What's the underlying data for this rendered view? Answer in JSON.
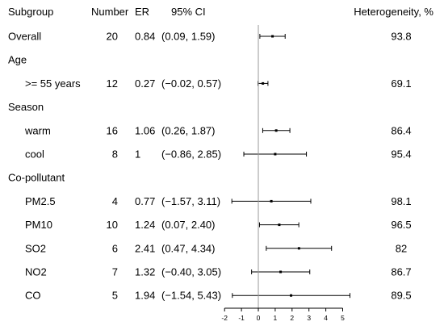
{
  "headers": {
    "subgroup": "Subgroup",
    "number": "Number",
    "er": "ER",
    "ci": "95% CI",
    "heterogeneity": "Heterogeneity, %"
  },
  "chart_data": {
    "type": "forest",
    "title": "",
    "xlabel": "",
    "ylabel": "",
    "reference_line": 0,
    "xlim": [
      -2,
      5.5
    ],
    "x_ticks": [
      -2,
      -1,
      0,
      1,
      2,
      3,
      4,
      5
    ],
    "x_tick_labels": [
      "-2",
      "-1",
      "0",
      "1",
      "2",
      "3",
      "4",
      "5"
    ],
    "rows": [
      {
        "kind": "row",
        "label": "Overall",
        "indent": false,
        "n": "20",
        "er_text": "0.84",
        "ci_text": "(0.09, 1.59)",
        "het_text": "93.8",
        "estimate": 0.84,
        "lower": 0.09,
        "upper": 1.59
      },
      {
        "kind": "header",
        "label": "Age"
      },
      {
        "kind": "row",
        "label": ">= 55 years",
        "indent": true,
        "n": "12",
        "er_text": "0.27",
        "ci_text": "(−0.02, 0.57)",
        "het_text": "69.1",
        "estimate": 0.27,
        "lower": -0.02,
        "upper": 0.57
      },
      {
        "kind": "header",
        "label": "Season"
      },
      {
        "kind": "row",
        "label": "warm",
        "indent": true,
        "n": "16",
        "er_text": "1.06",
        "ci_text": "(0.26, 1.87)",
        "het_text": "86.4",
        "estimate": 1.06,
        "lower": 0.26,
        "upper": 1.87
      },
      {
        "kind": "row",
        "label": "cool",
        "indent": true,
        "n": "8",
        "er_text": "1",
        "ci_text": "(−0.86, 2.85)",
        "het_text": "95.4",
        "estimate": 1.0,
        "lower": -0.86,
        "upper": 2.85
      },
      {
        "kind": "header",
        "label": "Co-pollutant"
      },
      {
        "kind": "row",
        "label": "PM2.5",
        "indent": true,
        "n": "4",
        "er_text": "0.77",
        "ci_text": "(−1.57, 3.11)",
        "het_text": "98.1",
        "estimate": 0.77,
        "lower": -1.57,
        "upper": 3.11
      },
      {
        "kind": "row",
        "label": "PM10",
        "indent": true,
        "n": "10",
        "er_text": "1.24",
        "ci_text": "(0.07, 2.40)",
        "het_text": "96.5",
        "estimate": 1.24,
        "lower": 0.07,
        "upper": 2.4
      },
      {
        "kind": "row",
        "label": "SO2",
        "indent": true,
        "n": "6",
        "er_text": "2.41",
        "ci_text": "(0.47, 4.34)",
        "het_text": "82",
        "estimate": 2.41,
        "lower": 0.47,
        "upper": 4.34
      },
      {
        "kind": "row",
        "label": "NO2",
        "indent": true,
        "n": "7",
        "er_text": "1.32",
        "ci_text": "(−0.40, 3.05)",
        "het_text": "86.7",
        "estimate": 1.32,
        "lower": -0.4,
        "upper": 3.05
      },
      {
        "kind": "row",
        "label": "CO",
        "indent": true,
        "n": "5",
        "er_text": "1.94",
        "ci_text": "(−1.54, 5.43)",
        "het_text": "89.5",
        "estimate": 1.94,
        "lower": -1.54,
        "upper": 5.43
      }
    ]
  }
}
